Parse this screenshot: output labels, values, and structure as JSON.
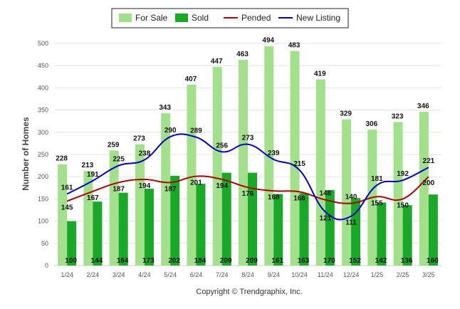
{
  "chart_data": {
    "type": "bar",
    "categories": [
      "1/24",
      "2/24",
      "3/24",
      "4/24",
      "5/24",
      "6/24",
      "7/24",
      "8/24",
      "9/24",
      "10/24",
      "11/24",
      "12/24",
      "1/25",
      "2/25",
      "3/25"
    ],
    "series": [
      {
        "name": "For Sale",
        "kind": "bar",
        "color": "#a3e08b",
        "values": [
          228,
          213,
          259,
          273,
          343,
          407,
          447,
          463,
          494,
          483,
          419,
          329,
          306,
          323,
          346
        ]
      },
      {
        "name": "Sold",
        "kind": "bar",
        "color": "#1aa829",
        "values": [
          100,
          144,
          164,
          173,
          202,
          184,
          209,
          209,
          161,
          163,
          170,
          152,
          142,
          136,
          160
        ]
      },
      {
        "name": "Pended",
        "kind": "line",
        "color": "#b30000",
        "values": [
          145,
          167,
          187,
          194,
          187,
          201,
          194,
          176,
          168,
          166,
          148,
          140,
          155,
          150,
          200
        ]
      },
      {
        "name": "New Listing",
        "kind": "line",
        "color": "#0000cc",
        "values": [
          161,
          191,
          225,
          238,
          290,
          289,
          256,
          273,
          239,
          215,
          121,
          111,
          181,
          192,
          221
        ]
      }
    ],
    "title": "",
    "xlabel": "",
    "ylabel": "Number of Homes",
    "ylim": [
      0,
      500
    ],
    "yticks": [
      0,
      50,
      100,
      150,
      200,
      250,
      300,
      350,
      400,
      450,
      500
    ],
    "grid": true,
    "legend_position": "top-center",
    "credit": "Copyright © Trendgraphix, Inc."
  }
}
